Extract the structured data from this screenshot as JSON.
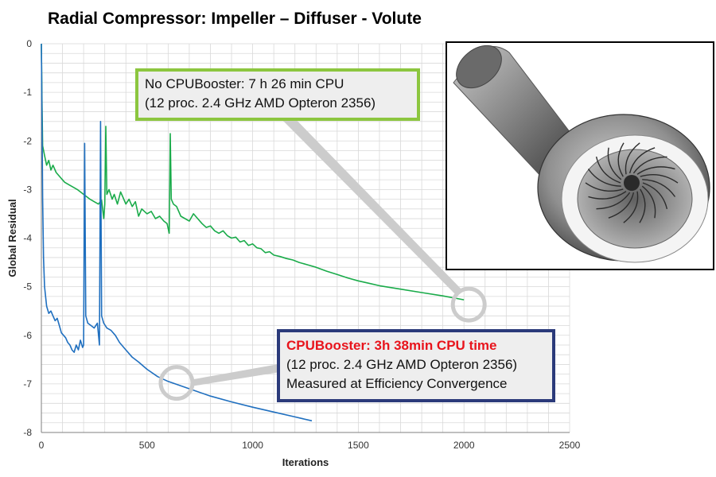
{
  "title": "Radial Compressor: Impeller – Diffuser - Volute",
  "annotations": {
    "no_cpubooster": {
      "line1": "No CPUBooster: 7 h 26 min CPU",
      "line2": "(12 proc. 2.4 GHz AMD Opteron 2356)"
    },
    "cpubooster": {
      "line1": "CPUBooster: 3h 38min CPU time",
      "line2": "(12 proc. 2.4 GHz AMD Opteron 2356)",
      "line3": "Measured at Efficiency Convergence"
    }
  },
  "colors": {
    "no_cpubooster": "#1aab4a",
    "cpubooster": "#1f6fbf",
    "grid": "#d9d9d9",
    "callout": "#cccccc"
  },
  "chart_data": {
    "type": "line",
    "title": "Radial Compressor: Impeller – Diffuser - Volute",
    "xlabel": "Iterations",
    "ylabel": "Global Residual",
    "xlim": [
      0,
      2500
    ],
    "ylim": [
      -8,
      0
    ],
    "xticks": [
      0,
      500,
      1000,
      1500,
      2000,
      2500
    ],
    "yticks": [
      0,
      -1,
      -2,
      -3,
      -4,
      -5,
      -6,
      -7,
      -8
    ],
    "grid": true,
    "series": [
      {
        "name": "No CPUBooster",
        "color": "#1aab4a",
        "points": [
          [
            0,
            0
          ],
          [
            3,
            -1.2
          ],
          [
            6,
            -2.1
          ],
          [
            15,
            -2.3
          ],
          [
            25,
            -2.5
          ],
          [
            35,
            -2.4
          ],
          [
            45,
            -2.6
          ],
          [
            55,
            -2.5
          ],
          [
            70,
            -2.65
          ],
          [
            90,
            -2.75
          ],
          [
            110,
            -2.85
          ],
          [
            130,
            -2.9
          ],
          [
            150,
            -2.95
          ],
          [
            170,
            -3.0
          ],
          [
            185,
            -3.05
          ],
          [
            200,
            -3.1
          ],
          [
            215,
            -3.15
          ],
          [
            230,
            -3.2
          ],
          [
            250,
            -3.25
          ],
          [
            270,
            -3.3
          ],
          [
            285,
            -3.22
          ],
          [
            295,
            -3.6
          ],
          [
            300,
            -3.3
          ],
          [
            305,
            -1.7
          ],
          [
            310,
            -3.1
          ],
          [
            320,
            -3.0
          ],
          [
            335,
            -3.2
          ],
          [
            345,
            -3.1
          ],
          [
            360,
            -3.3
          ],
          [
            375,
            -3.05
          ],
          [
            385,
            -3.15
          ],
          [
            400,
            -3.3
          ],
          [
            415,
            -3.2
          ],
          [
            430,
            -3.35
          ],
          [
            445,
            -3.25
          ],
          [
            460,
            -3.55
          ],
          [
            475,
            -3.4
          ],
          [
            500,
            -3.5
          ],
          [
            520,
            -3.45
          ],
          [
            540,
            -3.6
          ],
          [
            560,
            -3.55
          ],
          [
            580,
            -3.65
          ],
          [
            595,
            -3.7
          ],
          [
            605,
            -3.9
          ],
          [
            610,
            -1.85
          ],
          [
            615,
            -3.2
          ],
          [
            625,
            -3.3
          ],
          [
            640,
            -3.35
          ],
          [
            660,
            -3.55
          ],
          [
            680,
            -3.6
          ],
          [
            700,
            -3.65
          ],
          [
            720,
            -3.5
          ],
          [
            740,
            -3.6
          ],
          [
            760,
            -3.7
          ],
          [
            780,
            -3.78
          ],
          [
            800,
            -3.75
          ],
          [
            820,
            -3.85
          ],
          [
            840,
            -3.9
          ],
          [
            860,
            -3.85
          ],
          [
            880,
            -3.95
          ],
          [
            900,
            -4.0
          ],
          [
            920,
            -3.98
          ],
          [
            940,
            -4.08
          ],
          [
            960,
            -4.05
          ],
          [
            980,
            -4.15
          ],
          [
            1000,
            -4.12
          ],
          [
            1020,
            -4.2
          ],
          [
            1040,
            -4.22
          ],
          [
            1060,
            -4.3
          ],
          [
            1080,
            -4.28
          ],
          [
            1100,
            -4.35
          ],
          [
            1130,
            -4.38
          ],
          [
            1160,
            -4.42
          ],
          [
            1190,
            -4.45
          ],
          [
            1220,
            -4.5
          ],
          [
            1260,
            -4.55
          ],
          [
            1300,
            -4.6
          ],
          [
            1350,
            -4.68
          ],
          [
            1400,
            -4.75
          ],
          [
            1450,
            -4.82
          ],
          [
            1500,
            -4.88
          ],
          [
            1550,
            -4.93
          ],
          [
            1600,
            -4.98
          ],
          [
            1700,
            -5.05
          ],
          [
            1800,
            -5.12
          ],
          [
            1900,
            -5.19
          ],
          [
            2000,
            -5.27
          ]
        ]
      },
      {
        "name": "CPUBooster",
        "color": "#1f6fbf",
        "points": [
          [
            0,
            0
          ],
          [
            3,
            -1.5
          ],
          [
            6,
            -3.2
          ],
          [
            10,
            -4.4
          ],
          [
            15,
            -5.0
          ],
          [
            25,
            -5.4
          ],
          [
            35,
            -5.55
          ],
          [
            45,
            -5.5
          ],
          [
            55,
            -5.6
          ],
          [
            65,
            -5.7
          ],
          [
            75,
            -5.65
          ],
          [
            85,
            -5.8
          ],
          [
            95,
            -5.95
          ],
          [
            105,
            -6.0
          ],
          [
            115,
            -6.05
          ],
          [
            125,
            -6.15
          ],
          [
            135,
            -6.2
          ],
          [
            145,
            -6.3
          ],
          [
            155,
            -6.35
          ],
          [
            165,
            -6.2
          ],
          [
            175,
            -6.3
          ],
          [
            185,
            -6.1
          ],
          [
            195,
            -6.25
          ],
          [
            200,
            -6.2
          ],
          [
            205,
            -2.05
          ],
          [
            210,
            -5.6
          ],
          [
            220,
            -5.75
          ],
          [
            235,
            -5.8
          ],
          [
            250,
            -5.85
          ],
          [
            265,
            -5.75
          ],
          [
            275,
            -6.2
          ],
          [
            280,
            -1.6
          ],
          [
            285,
            -5.6
          ],
          [
            295,
            -5.75
          ],
          [
            310,
            -5.85
          ],
          [
            330,
            -5.9
          ],
          [
            350,
            -6.0
          ],
          [
            370,
            -6.15
          ],
          [
            400,
            -6.3
          ],
          [
            430,
            -6.45
          ],
          [
            460,
            -6.55
          ],
          [
            500,
            -6.7
          ],
          [
            550,
            -6.85
          ],
          [
            600,
            -6.95
          ],
          [
            700,
            -7.1
          ],
          [
            800,
            -7.25
          ],
          [
            900,
            -7.37
          ],
          [
            1000,
            -7.48
          ],
          [
            1100,
            -7.58
          ],
          [
            1200,
            -7.68
          ],
          [
            1280,
            -7.76
          ]
        ]
      }
    ]
  }
}
